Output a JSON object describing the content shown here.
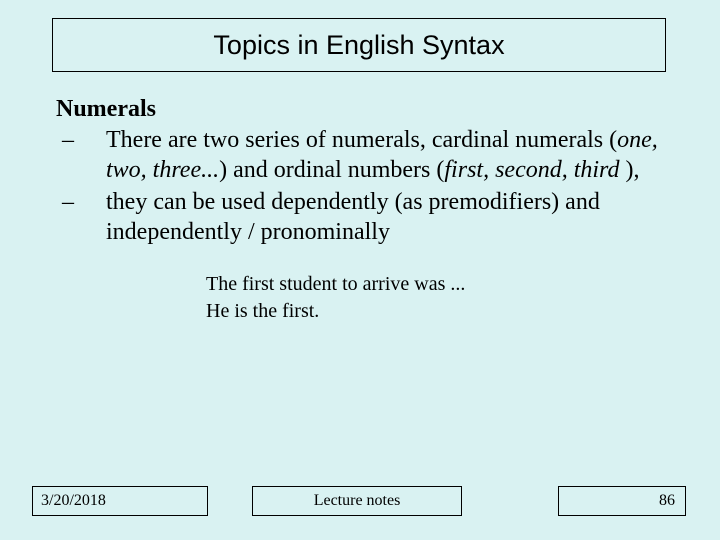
{
  "slide": {
    "background_color": "#d9f2f2",
    "title": "Topics in English Syntax",
    "title_fontsize": 27,
    "title_font": "Arial",
    "body_font": "Times New Roman",
    "heading": "Numerals",
    "heading_fontsize": 24,
    "bullets": [
      {
        "dash": "–",
        "pre1": "There are two series of numerals, cardinal numerals (",
        "i1": "one, two, three...",
        "mid": ") and ordinal numbers (",
        "i2": "first, second, third ",
        "post": "),"
      },
      {
        "dash": "–",
        "text": "they can be used dependently (as premodifiers) and independently / pronominally"
      }
    ],
    "bullet_fontsize": 24,
    "examples": [
      "The first student to arrive was ...",
      "He is the first."
    ],
    "example_fontsize": 20,
    "footer": {
      "date": "3/20/2018",
      "center": "Lecture notes",
      "page": "86",
      "fontsize": 16
    }
  }
}
